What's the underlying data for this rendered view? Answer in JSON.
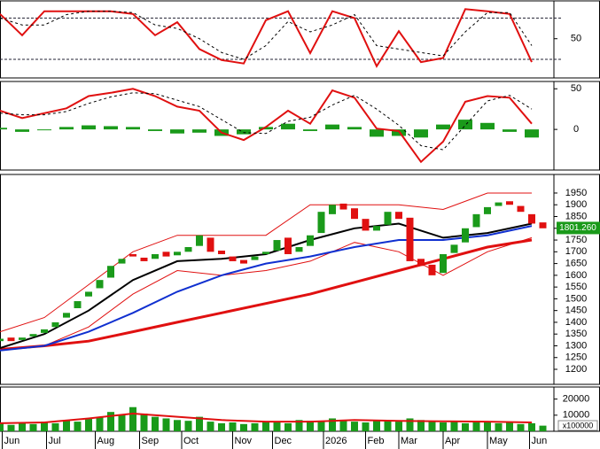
{
  "chart_data": [
    {
      "type": "stochastic",
      "xlim": [
        0,
        250
      ],
      "ylim": [
        -7,
        105
      ],
      "yticks": [
        50
      ],
      "levels": [
        20,
        80
      ],
      "x": [
        0,
        10,
        20,
        30,
        40,
        50,
        60,
        70,
        80,
        90,
        100,
        110,
        120,
        130,
        140,
        150,
        160,
        170,
        180,
        190,
        200,
        210,
        220,
        230,
        240
      ],
      "series": [
        {
          "color": "#e01010",
          "width": 2,
          "dash": false,
          "values": [
            86,
            55,
            90,
            90,
            90,
            90,
            86,
            55,
            74,
            35,
            19,
            14,
            77,
            90,
            29,
            90,
            80,
            10,
            61,
            16,
            22,
            93,
            90,
            86,
            16
          ]
        },
        {
          "color": "#000000",
          "width": 1,
          "dash": true,
          "values": [
            80,
            70,
            70,
            85,
            90,
            90,
            88,
            70,
            65,
            50,
            30,
            20,
            40,
            75,
            60,
            70,
            85,
            40,
            35,
            30,
            25,
            60,
            88,
            88,
            40
          ]
        }
      ]
    },
    {
      "type": "macd",
      "xlim": [
        0,
        250
      ],
      "ylim": [
        -50,
        59
      ],
      "yticks": [
        0,
        50
      ],
      "x": [
        0,
        10,
        20,
        30,
        40,
        50,
        60,
        70,
        80,
        90,
        100,
        110,
        120,
        130,
        140,
        150,
        160,
        170,
        180,
        190,
        200,
        210,
        220,
        230,
        240
      ],
      "series": [
        {
          "color": "#e01010",
          "width": 2,
          "dash": false,
          "values": [
            23,
            14,
            20,
            26,
            41,
            45,
            50,
            41,
            28,
            23,
            -4,
            -13,
            3,
            23,
            7,
            48,
            39,
            1,
            -2,
            -40,
            -15,
            34,
            41,
            39,
            7
          ]
        },
        {
          "color": "#000000",
          "width": 1,
          "dash": true,
          "values": [
            20,
            18,
            18,
            22,
            32,
            40,
            45,
            44,
            36,
            28,
            12,
            -4,
            -5,
            10,
            15,
            30,
            42,
            25,
            5,
            -20,
            -25,
            5,
            35,
            42,
            25
          ]
        }
      ],
      "histogram": {
        "color": "#1a9a1a",
        "values": [
          2,
          -3,
          0,
          3,
          5,
          4,
          3,
          -2,
          -5,
          -4,
          -8,
          -6,
          3,
          7,
          -2,
          6,
          3,
          -9,
          -8,
          -10,
          6,
          12,
          8,
          -3,
          -10
        ]
      }
    },
    {
      "type": "candlestick",
      "xlim": [
        0,
        250
      ],
      "ylim": [
        1136,
        2029
      ],
      "yticks": [
        1200,
        1250,
        1300,
        1350,
        1400,
        1450,
        1500,
        1550,
        1600,
        1650,
        1700,
        1750,
        1800,
        1850,
        1900,
        1950
      ],
      "up_color": "#1a9a1a",
      "down_color": "#e01010",
      "x": [
        0,
        5,
        10,
        15,
        20,
        25,
        30,
        35,
        40,
        45,
        50,
        55,
        60,
        65,
        70,
        75,
        80,
        85,
        90,
        95,
        100,
        105,
        110,
        115,
        120,
        125,
        130,
        135,
        140,
        145,
        150,
        155,
        160,
        165,
        170,
        175,
        180,
        185,
        190,
        195,
        200,
        205,
        210,
        215,
        220,
        225,
        230,
        235,
        240,
        245
      ],
      "open": [
        1320,
        1335,
        1325,
        1340,
        1355,
        1380,
        1420,
        1460,
        1510,
        1545,
        1590,
        1650,
        1690,
        1675,
        1670,
        1700,
        1685,
        1700,
        1725,
        1760,
        1705,
        1680,
        1665,
        1665,
        1690,
        1705,
        1760,
        1700,
        1725,
        1780,
        1860,
        1905,
        1885,
        1840,
        1790,
        1815,
        1870,
        1845,
        1670,
        1645,
        1610,
        1695,
        1740,
        1805,
        1860,
        1895,
        1915,
        1895,
        1860,
        1825
      ],
      "close": [
        1330,
        1320,
        1335,
        1350,
        1370,
        1400,
        1440,
        1490,
        1530,
        1580,
        1640,
        1670,
        1680,
        1660,
        1690,
        1680,
        1700,
        1720,
        1770,
        1700,
        1690,
        1660,
        1650,
        1680,
        1700,
        1750,
        1690,
        1720,
        1770,
        1870,
        1900,
        1880,
        1840,
        1790,
        1810,
        1870,
        1840,
        1660,
        1640,
        1600,
        1690,
        1730,
        1800,
        1860,
        1890,
        1910,
        1900,
        1870,
        1820,
        1800
      ],
      "last_price": {
        "value": 1801.26,
        "label": "1801.260"
      },
      "last_price_color": "#1a9a1a",
      "overlays": {
        "x": [
          0,
          20,
          40,
          60,
          80,
          100,
          120,
          140,
          160,
          180,
          200,
          220,
          240
        ],
        "series": [
          {
            "color": "#e01010",
            "width": 1,
            "values": [
              1360,
              1420,
              1560,
              1700,
              1770,
              1770,
              1770,
              1900,
              1900,
              1900,
              1880,
              1950,
              1950
            ]
          },
          {
            "color": "#e01010",
            "width": 1,
            "values": [
              1280,
              1300,
              1380,
              1520,
              1620,
              1600,
              1620,
              1660,
              1740,
              1700,
              1600,
              1700,
              1760
            ]
          },
          {
            "color": "#e01010",
            "width": 3,
            "values": [
              1285,
              1300,
              1320,
              1360,
              1400,
              1440,
              1480,
              1520,
              1570,
              1620,
              1670,
              1720,
              1750
            ]
          },
          {
            "color": "#1030d0",
            "width": 2,
            "values": [
              1280,
              1300,
              1360,
              1440,
              1530,
              1600,
              1650,
              1680,
              1720,
              1750,
              1750,
              1770,
              1810
            ]
          },
          {
            "color": "#000000",
            "width": 2,
            "values": [
              1290,
              1350,
              1450,
              1580,
              1660,
              1670,
              1690,
              1750,
              1800,
              1820,
              1760,
              1780,
              1820
            ]
          }
        ]
      }
    },
    {
      "type": "volume",
      "xlim": [
        0,
        250
      ],
      "ylim": [
        0,
        27500
      ],
      "yticks": [
        10000,
        20000
      ],
      "unit_label": "x100000",
      "color": "#1a9a1a",
      "x": [
        0,
        5,
        10,
        15,
        20,
        25,
        30,
        35,
        40,
        45,
        50,
        55,
        60,
        65,
        70,
        75,
        80,
        85,
        90,
        95,
        100,
        105,
        110,
        115,
        120,
        125,
        130,
        135,
        140,
        145,
        150,
        155,
        160,
        165,
        170,
        175,
        180,
        185,
        190,
        195,
        200,
        205,
        210,
        215,
        220,
        225,
        230,
        235,
        240,
        245
      ],
      "values": [
        5000,
        4000,
        5500,
        4500,
        6000,
        5000,
        7000,
        6000,
        8000,
        9000,
        12000,
        10000,
        15000,
        11000,
        9000,
        8000,
        7000,
        6500,
        9000,
        6000,
        5000,
        5500,
        4500,
        5000,
        6000,
        5500,
        5000,
        7000,
        6500,
        6000,
        8000,
        7000,
        6000,
        5500,
        7000,
        6500,
        6000,
        8000,
        7000,
        6000,
        5500,
        6000,
        5000,
        6500,
        5500,
        5000,
        6000,
        4500,
        5000,
        3500
      ],
      "ma": {
        "color": "#e01010",
        "x": [
          0,
          20,
          40,
          60,
          80,
          100,
          120,
          140,
          160,
          180,
          200,
          220,
          240
        ],
        "values": [
          5000,
          5500,
          8000,
          11000,
          9000,
          7000,
          6000,
          6000,
          7000,
          6500,
          6200,
          6000,
          5500
        ]
      },
      "xticks": [
        {
          "value": 1,
          "label": "Jun"
        },
        {
          "value": 21,
          "label": "Jul"
        },
        {
          "value": 43,
          "label": "Aug"
        },
        {
          "value": 63,
          "label": "Sep"
        },
        {
          "value": 82,
          "label": "Oct"
        },
        {
          "value": 105,
          "label": "Nov"
        },
        {
          "value": 123,
          "label": "Dec"
        },
        {
          "value": 146,
          "label": "2026"
        },
        {
          "value": 165,
          "label": "Feb"
        },
        {
          "value": 180,
          "label": "Mar"
        },
        {
          "value": 200,
          "label": "Apr"
        },
        {
          "value": 220,
          "label": "May"
        },
        {
          "value": 239,
          "label": "Jun"
        }
      ]
    }
  ]
}
